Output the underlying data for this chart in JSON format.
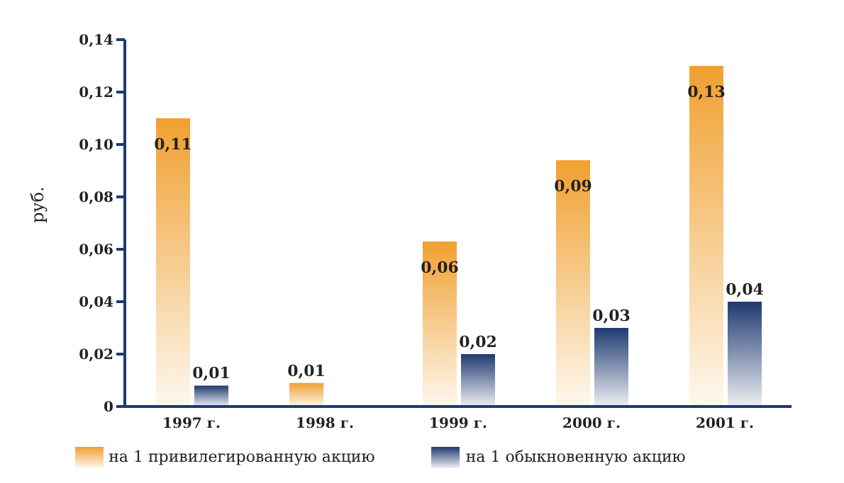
{
  "chart_data": {
    "type": "bar",
    "ylabel": "руб.",
    "categories": [
      "1997 г.",
      "1998 г.",
      "1999 г.",
      "2000 г.",
      "2001 г."
    ],
    "series": [
      {
        "name": "на 1 привилегированную акцию",
        "color": "#f0a030",
        "values": [
          0.11,
          0.009,
          0.063,
          0.094,
          0.13
        ],
        "value_labels": [
          "0,11",
          "0,01",
          "0,06",
          "0,09",
          "0,13"
        ]
      },
      {
        "name": "на 1 обыкновенную акцию",
        "color": "#1f3a70",
        "values": [
          0.008,
          null,
          0.02,
          0.03,
          0.04
        ],
        "value_labels": [
          "0,01",
          null,
          "0,02",
          "0,03",
          "0,04"
        ]
      }
    ],
    "ylim": [
      0,
      0.14
    ],
    "yticks": [
      {
        "value": 0,
        "label": "0"
      },
      {
        "value": 0.02,
        "label": "0,02"
      },
      {
        "value": 0.04,
        "label": "0,04"
      },
      {
        "value": 0.06,
        "label": "0,06"
      },
      {
        "value": 0.08,
        "label": "0,08"
      },
      {
        "value": 0.1,
        "label": "0,10"
      },
      {
        "value": 0.12,
        "label": "0,12"
      },
      {
        "value": 0.14,
        "label": "0,14"
      }
    ],
    "grid": false,
    "legend": "bottom"
  }
}
